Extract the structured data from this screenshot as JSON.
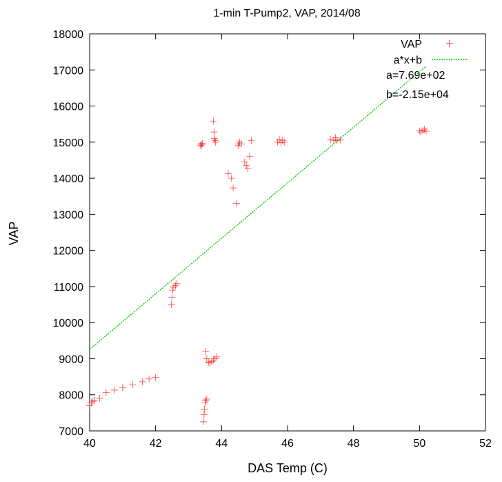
{
  "chart_data": {
    "type": "scatter",
    "title": "1-min T-Pump2, VAP, 2014/08",
    "xlabel": "DAS Temp (C)",
    "ylabel": "VAP",
    "xlim": [
      40,
      52
    ],
    "ylim": [
      7000,
      18000
    ],
    "xticks": [
      40,
      42,
      44,
      46,
      48,
      50,
      52
    ],
    "yticks": [
      7000,
      8000,
      9000,
      10000,
      11000,
      12000,
      13000,
      14000,
      15000,
      16000,
      17000,
      18000
    ],
    "grid": false,
    "legend_position": "top-right",
    "colors": {
      "scatter": "#ff0000",
      "fit": "#00cc00"
    },
    "series": [
      {
        "name": "VAP",
        "marker": "plus",
        "points": [
          [
            40.0,
            7700
          ],
          [
            40.05,
            7780
          ],
          [
            40.1,
            7820
          ],
          [
            40.15,
            7840
          ],
          [
            40.3,
            7900
          ],
          [
            40.5,
            8060
          ],
          [
            40.75,
            8130
          ],
          [
            41.0,
            8200
          ],
          [
            41.3,
            8280
          ],
          [
            41.6,
            8360
          ],
          [
            41.8,
            8440
          ],
          [
            42.0,
            8480
          ],
          [
            42.48,
            10500
          ],
          [
            42.5,
            10700
          ],
          [
            42.52,
            10900
          ],
          [
            42.55,
            10980
          ],
          [
            42.6,
            11030
          ],
          [
            42.65,
            11080
          ],
          [
            43.35,
            14900
          ],
          [
            43.38,
            14950
          ],
          [
            43.4,
            14920
          ],
          [
            43.42,
            14960
          ],
          [
            43.45,
            7250
          ],
          [
            43.47,
            7450
          ],
          [
            43.48,
            7600
          ],
          [
            43.5,
            7780
          ],
          [
            43.52,
            7850
          ],
          [
            43.55,
            7880
          ],
          [
            43.52,
            9200
          ],
          [
            43.55,
            9000
          ],
          [
            43.6,
            8900
          ],
          [
            43.65,
            8880
          ],
          [
            43.7,
            8920
          ],
          [
            43.75,
            8960
          ],
          [
            43.8,
            9000
          ],
          [
            43.85,
            9050
          ],
          [
            43.75,
            15580
          ],
          [
            43.77,
            15280
          ],
          [
            43.78,
            15100
          ],
          [
            43.8,
            15050
          ],
          [
            43.82,
            15000
          ],
          [
            44.2,
            14130
          ],
          [
            44.3,
            14000
          ],
          [
            44.35,
            13730
          ],
          [
            44.45,
            13300
          ],
          [
            44.5,
            14900
          ],
          [
            44.52,
            14950
          ],
          [
            44.55,
            15000
          ],
          [
            44.6,
            14950
          ],
          [
            44.7,
            14450
          ],
          [
            44.75,
            14350
          ],
          [
            44.8,
            14270
          ],
          [
            44.85,
            14600
          ],
          [
            44.9,
            15040
          ],
          [
            45.7,
            15000
          ],
          [
            45.75,
            15080
          ],
          [
            45.8,
            14980
          ],
          [
            45.85,
            15050
          ],
          [
            45.9,
            15000
          ],
          [
            47.3,
            15070
          ],
          [
            47.4,
            15050
          ],
          [
            47.45,
            15120
          ],
          [
            47.5,
            15050
          ],
          [
            47.6,
            15060
          ],
          [
            50.0,
            15310
          ],
          [
            50.05,
            15280
          ],
          [
            50.1,
            15330
          ],
          [
            50.15,
            15360
          ],
          [
            50.2,
            15300
          ]
        ]
      },
      {
        "name": "a*x+b",
        "type": "line",
        "a": 769,
        "b": -21500,
        "x_range": [
          40,
          50.2
        ]
      }
    ],
    "annotations": [
      "a=7.69e+02",
      "b=-2.15e+04"
    ]
  }
}
